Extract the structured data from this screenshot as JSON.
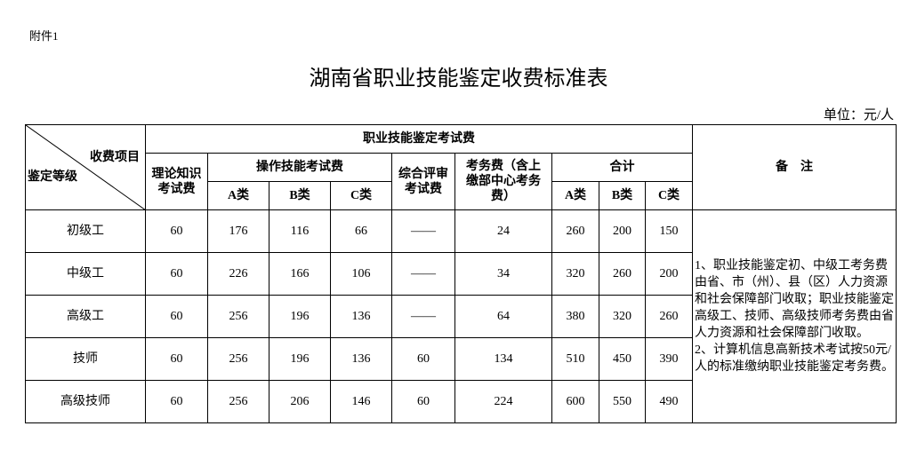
{
  "attachment": "附件1",
  "title": "湖南省职业技能鉴定收费标准表",
  "unit": "单位：元/人",
  "header": {
    "item": "收费项目",
    "level": "鉴定等级",
    "group": "职业技能鉴定考试费",
    "theory": "理论知识考试费",
    "practical": "操作技能考试费",
    "review": "综合评审考试费",
    "affairs": "考务费（含上缴部中心考务费）",
    "total": "合计",
    "notes": "备　注",
    "a": "A类",
    "b": "B类",
    "c": "C类"
  },
  "rows": [
    {
      "level": "初级工",
      "theory": "60",
      "pa": "176",
      "pb": "116",
      "pc": "66",
      "review": "——",
      "affairs": "24",
      "ta": "260",
      "tb": "200",
      "tc": "150"
    },
    {
      "level": "中级工",
      "theory": "60",
      "pa": "226",
      "pb": "166",
      "pc": "106",
      "review": "——",
      "affairs": "34",
      "ta": "320",
      "tb": "260",
      "tc": "200"
    },
    {
      "level": "高级工",
      "theory": "60",
      "pa": "256",
      "pb": "196",
      "pc": "136",
      "review": "——",
      "affairs": "64",
      "ta": "380",
      "tb": "320",
      "tc": "260"
    },
    {
      "level": "技师",
      "theory": "60",
      "pa": "256",
      "pb": "196",
      "pc": "136",
      "review": "60",
      "affairs": "134",
      "ta": "510",
      "tb": "450",
      "tc": "390"
    },
    {
      "level": "高级技师",
      "theory": "60",
      "pa": "256",
      "pb": "206",
      "pc": "146",
      "review": "60",
      "affairs": "224",
      "ta": "600",
      "tb": "550",
      "tc": "490"
    }
  ],
  "notes": "1、职业技能鉴定初、中级工考务费由省、市（州）、县（区）人力资源和社会保障部门收取；职业技能鉴定高级工、技师、高级技师考务费由省人力资源和社会保障部门收取。\n2、计算机信息高新技术考试按50元/人的标准缴纳职业技能鉴定考务费。"
}
